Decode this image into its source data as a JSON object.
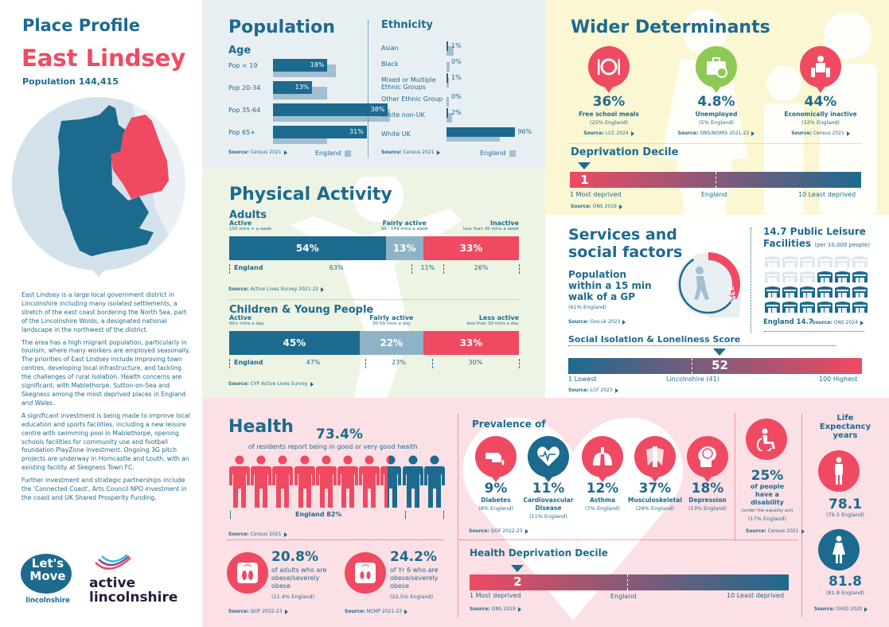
{
  "header": {
    "title": "Place Profile",
    "district": "East Lindsey",
    "population": "Population 144,415"
  },
  "description": [
    "East Lindsey is a large local government district in Lincolnshire including many isolated settlements, a stretch of the east coast bordering the North Sea, part of the Lincolnshire Wolds, a designated national landscape in the northwest of the district.",
    "The area has a high migrant population, particularly in tourism, where many workers are employed seasonally. The priorities of East Lindsey include improving town centres, developing local infrastructure, and tackling the challenges of rural isolation. Health concerns are significant, with Mablethorpe, Sutton-on-Sea and Skegness among the most deprived places in England and Wales.",
    "A significant investment is being made to improve local education and sports facilities, including a new leisure centre with swimming pool in Mablethorpe, opening schools facilities for community use and football foundation PlayZone investment. Ongoing 3G pitch projects are underway in Horncastle and Louth, with an existing facility at Skegness Town FC.",
    "Further investment and strategic partnerships include the 'Connected Coast', Arts Council NPO investment in the coast and UK Shared Prosperity Funding."
  ],
  "logos": {
    "lets_move": [
      "Let's",
      "Move",
      "lincolnshire"
    ],
    "active_lincs": [
      "active",
      "lincolnshire"
    ]
  },
  "colors": {
    "navy": "#1d6a8f",
    "red": "#ef4a61",
    "light_blue": "#a3bfcf",
    "green": "#8fc955"
  },
  "population": {
    "title": "Population",
    "age": {
      "title": "Age",
      "rows": [
        {
          "label": "Pop < 19",
          "value": 18,
          "display": "18%",
          "england": 21
        },
        {
          "label": "Pop 20-34",
          "value": 13,
          "display": "13%",
          "england": 18
        },
        {
          "label": "Pop 35-64",
          "value": 38,
          "display": "38%",
          "england": 39
        },
        {
          "label": "Pop 65+",
          "value": 31,
          "display": "31%",
          "england": 18
        }
      ],
      "source_label": "Source:",
      "source": "Census 2021",
      "legend": "England"
    },
    "ethnicity": {
      "title": "Ethnicity",
      "rows": [
        {
          "label": "Asian",
          "value": 1,
          "display": "1%",
          "england": 10
        },
        {
          "label": "Black",
          "value": 0,
          "display": "0%",
          "england": 4
        },
        {
          "label": "Mixed or Multiple Ethnic Groups",
          "value": 1,
          "display": "1%",
          "england": 3
        },
        {
          "label": "Other Ethnic Group",
          "value": 0,
          "display": "0%",
          "england": 2
        },
        {
          "label": "White non-UK",
          "value": 2,
          "display": "2%",
          "england": 8
        },
        {
          "label": "White UK",
          "value": 96,
          "display": "96%",
          "england": 74
        }
      ],
      "source_label": "Source:",
      "source": "Census 2021",
      "legend": "England"
    }
  },
  "wider": {
    "title": "Wider Determinants",
    "stats": [
      {
        "icon": "plate-cutlery-icon",
        "value": "36%",
        "label": "Free school meals",
        "england": "(25% England)",
        "source": "LCC 2024"
      },
      {
        "icon": "briefcase-no-icon",
        "value": "4.8%",
        "label": "Unemployed",
        "england": "(5% England)",
        "source": "ONS/NOMIS 2021-22"
      },
      {
        "icon": "person-chair-icon",
        "value": "44%",
        "label": "Economically inactive",
        "england": "(32% England)",
        "source": "Census 2021"
      }
    ],
    "source_label": "Source:",
    "decile": {
      "title": "Deprivation Decile",
      "value": 1,
      "display": "1",
      "left": "1 Most deprived",
      "mid": "England",
      "right": "10 Least deprived",
      "source": "ONS 2019"
    }
  },
  "physical": {
    "title": "Physical Activity",
    "adults": {
      "title": "Adults",
      "cats": [
        {
          "label": "Active",
          "sub": "150 mins + a week",
          "value": 54,
          "display": "54%",
          "england": "63%"
        },
        {
          "label": "Fairly active",
          "sub": "30 - 149 mins a week",
          "value": 13,
          "display": "13%",
          "england": "11%"
        },
        {
          "label": "Inactive",
          "sub": "less than 30 mins a week",
          "value": 33,
          "display": "33%",
          "england": "26%"
        }
      ],
      "england_label": "England",
      "source": "Active Lives Survey 2021-22"
    },
    "cyp": {
      "title": "Children & Young People",
      "cats": [
        {
          "label": "Active",
          "sub": "60+ mins a day",
          "value": 45,
          "display": "45%",
          "england": "47%"
        },
        {
          "label": "Fairly active",
          "sub": "30-59 mins a day",
          "value": 22,
          "display": "22%",
          "england": "23%"
        },
        {
          "label": "Less active",
          "sub": "less than 30 mins a day",
          "value": 33,
          "display": "33%",
          "england": "30%"
        }
      ],
      "england_label": "England",
      "source": "CYP Active Lives Survey"
    },
    "source_label": "Source:"
  },
  "services": {
    "title_1": "Services and",
    "title_2": "social factors",
    "gp": {
      "line1": "Population",
      "line2": "within a 15 min",
      "line3": "walk of a GP",
      "england": "(61% England)",
      "value": 33,
      "display": "33%",
      "source": "Gov.uk 2023"
    },
    "leisure": {
      "title_1": "14.7 Public Leisure",
      "title_2": "Facilities",
      "per": "(per 10,000 people)",
      "value": 14.7,
      "england": "England 14.7",
      "source": "ONS 2024"
    },
    "isolation": {
      "title": "Social Isolation & Loneliness Score",
      "value": 52,
      "display": "52",
      "left": "1 Lowest",
      "mid": "Lincolnshire (41)",
      "right": "100 Highest",
      "source": "LCF 2023"
    },
    "source_label": "Source:"
  },
  "health": {
    "title": "Health",
    "good_health": {
      "value": 73.4,
      "display": "73.4%",
      "label": "of residents report being in good or very good health",
      "england": "England 82%",
      "source": "Census 2021"
    },
    "prevalence": {
      "title": "Prevalence of",
      "items": [
        {
          "icon": "diabetes-finger-icon",
          "value": "9%",
          "label": "Diabetes",
          "label2": "",
          "england": "(8% England)"
        },
        {
          "icon": "heart-warning-icon",
          "value": "11%",
          "label": "Cardiovascular",
          "label2": "Disease",
          "england": "(11% England)"
        },
        {
          "icon": "lungs-icon",
          "value": "12%",
          "label": "Asthma",
          "label2": "",
          "england": "(7% England)"
        },
        {
          "icon": "spine-icon",
          "value": "37%",
          "label": "Musculoskeletal",
          "label2": "",
          "england": "(28% England)"
        },
        {
          "icon": "brain-head-icon",
          "value": "18%",
          "label": "Depression",
          "label2": "",
          "england": "(13% England)"
        }
      ],
      "source": "QOF 2022-23"
    },
    "disability": {
      "value": "25%",
      "l1": "of people",
      "l2": "have a",
      "l3": "disability",
      "note": "(under the equality act)",
      "england": "(17% England)",
      "source": "Census 2021"
    },
    "life": {
      "title_1": "Life",
      "title_2": "Expectancy",
      "title_3": "years",
      "male": "78.1",
      "male_eng": "(79.5 England)",
      "female": "81.8",
      "female_eng": "(81.8 England)",
      "source": "OHID 2020"
    },
    "obesity_adult": {
      "value": "20.8%",
      "l1": "of adults who are",
      "l2": "obese/severely",
      "l3": "obese",
      "england": "(11.4% England)",
      "source": "QOF 2022-23"
    },
    "obesity_yr6": {
      "value": "24.2%",
      "l1": "of Yr 6 who are",
      "l2": "obese/severely",
      "l3": "obese",
      "england": "(22.5% England)",
      "source": "NCMP 2021-23"
    },
    "decile": {
      "title": "Health Deprivation Decile",
      "value": 2,
      "display": "2",
      "left": "1  Most deprived",
      "mid": "England",
      "right": "10 Least deprived",
      "source": "ONS 2019"
    },
    "source_label": "Source:"
  }
}
